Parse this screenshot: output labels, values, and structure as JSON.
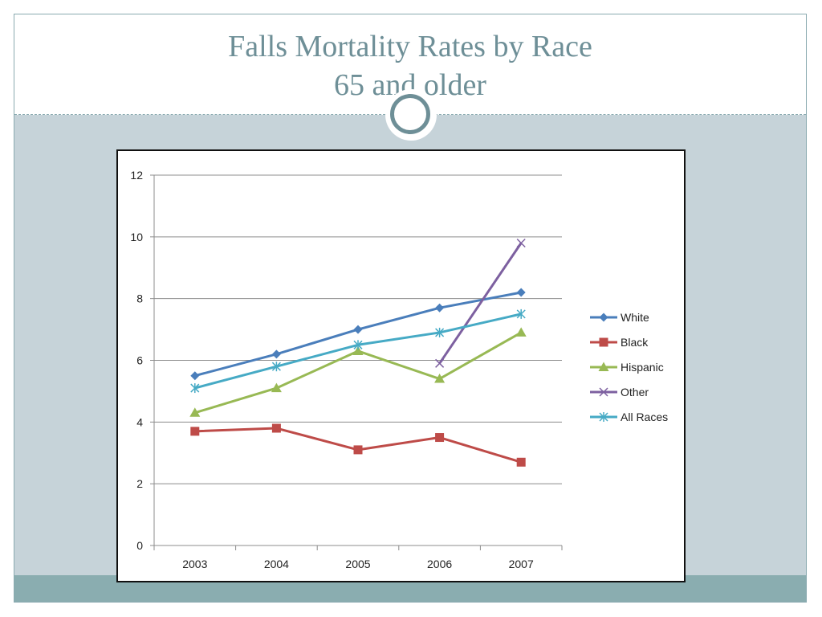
{
  "slide": {
    "title_line1": "Falls Mortality Rates by Race",
    "title_line2": "65 and older"
  },
  "colors": {
    "title": "#6e8f97",
    "content_band": "#c6d3d9",
    "footer_band": "#8aadb0"
  },
  "chart_data": {
    "type": "line",
    "title": "",
    "xlabel": "",
    "ylabel": "",
    "categories": [
      "2003",
      "2004",
      "2005",
      "2006",
      "2007"
    ],
    "ylim": [
      0,
      12
    ],
    "yticks": [
      0,
      2,
      4,
      6,
      8,
      10,
      12
    ],
    "grid": true,
    "legend": "right",
    "series": [
      {
        "name": "White",
        "values": [
          5.5,
          6.2,
          7.0,
          7.7,
          8.2
        ],
        "color": "#4a7ebb",
        "marker": "diamond"
      },
      {
        "name": "Black",
        "values": [
          3.7,
          3.8,
          3.1,
          3.5,
          2.7
        ],
        "color": "#be4b48",
        "marker": "square"
      },
      {
        "name": "Hispanic",
        "values": [
          4.3,
          5.1,
          6.3,
          5.4,
          6.9
        ],
        "color": "#98b954",
        "marker": "triangle"
      },
      {
        "name": "Other",
        "values": [
          null,
          null,
          null,
          5.9,
          9.8
        ],
        "color": "#7d60a0",
        "marker": "x"
      },
      {
        "name": "All Races",
        "values": [
          5.1,
          5.8,
          6.5,
          6.9,
          7.5
        ],
        "color": "#46aac5",
        "marker": "star"
      }
    ]
  }
}
